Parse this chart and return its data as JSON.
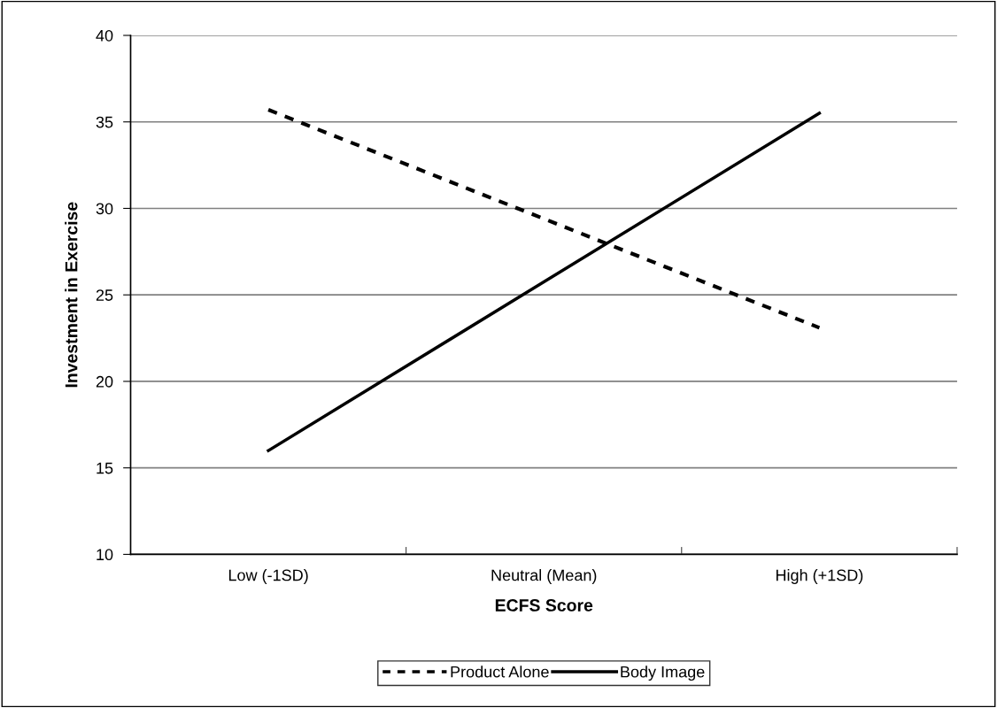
{
  "chart_data": {
    "type": "line",
    "xlabel": "ECFS Score",
    "ylabel": "Investment in Exercise",
    "categories": [
      "Low (-1SD)",
      "Neutral (Mean)",
      "High (+1SD)"
    ],
    "series": [
      {
        "name": "Product Alone",
        "color": "#000000",
        "line_style": "dashed",
        "values": [
          35.7,
          29.4,
          23.1
        ]
      },
      {
        "name": "Body Image",
        "color": "#000000",
        "line_style": "solid",
        "values": [
          16.0,
          25.75,
          35.5
        ]
      }
    ],
    "ylim": [
      10,
      40
    ],
    "yticks": [
      10,
      15,
      20,
      25,
      30,
      35,
      40
    ],
    "grid": "y",
    "legend": "bottom",
    "marker": "none"
  }
}
